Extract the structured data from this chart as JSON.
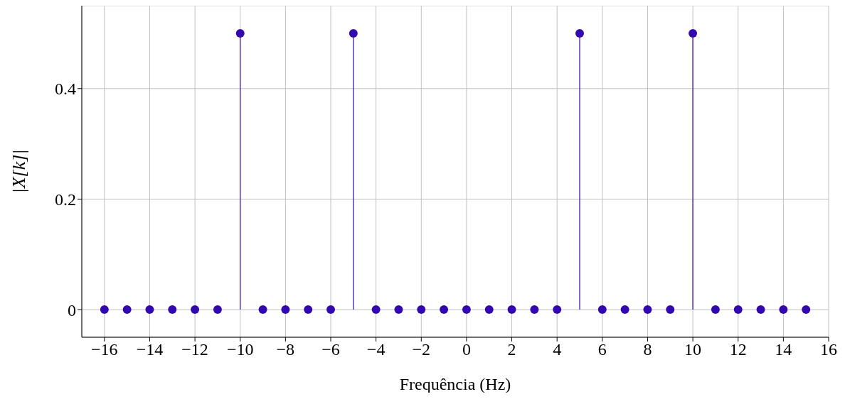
{
  "chart_data": {
    "type": "lollipop",
    "xlabel": "Frequência (Hz)",
    "ylabel": "|X[k]|",
    "x": [
      -16,
      -15,
      -14,
      -13,
      -12,
      -11,
      -10,
      -9,
      -8,
      -7,
      -6,
      -5,
      -4,
      -3,
      -2,
      -1,
      0,
      1,
      2,
      3,
      4,
      5,
      6,
      7,
      8,
      9,
      10,
      11,
      12,
      13,
      14,
      15
    ],
    "values": [
      0,
      0,
      0,
      0,
      0,
      0,
      0.5,
      0,
      0,
      0,
      0,
      0.5,
      0,
      0,
      0,
      0,
      0,
      0,
      0,
      0,
      0,
      0.5,
      0,
      0,
      0,
      0,
      0.5,
      0,
      0,
      0,
      0,
      0
    ],
    "color": "#3308b0",
    "marker": "circle",
    "grid": true,
    "xlim": [
      -17,
      16
    ],
    "xticks": [
      -16,
      -14,
      -12,
      -10,
      -8,
      -6,
      -4,
      -2,
      0,
      2,
      4,
      6,
      8,
      10,
      12,
      14,
      16
    ],
    "ylim": [
      -0.05,
      0.55
    ],
    "yticks": [
      0,
      0.2,
      0.4
    ]
  }
}
